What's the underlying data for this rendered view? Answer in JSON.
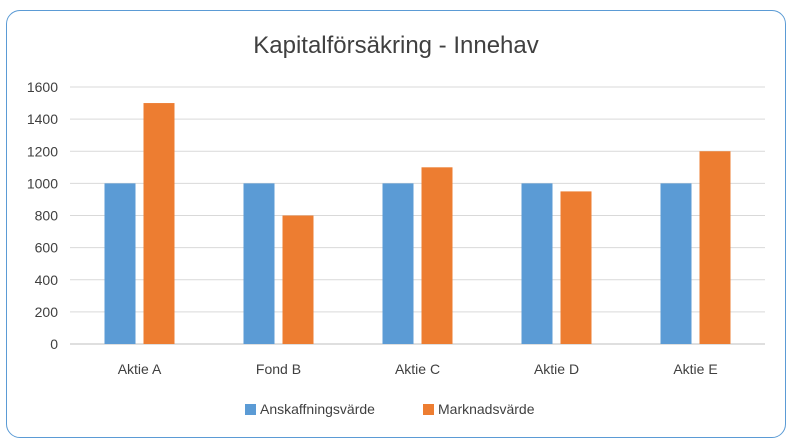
{
  "chart_data": {
    "type": "bar",
    "title": "Kapitalförsäkring - Innehav",
    "xlabel": "",
    "ylabel": "",
    "categories": [
      "Aktie A",
      "Fond B",
      "Aktie C",
      "Aktie D",
      "Aktie E"
    ],
    "series": [
      {
        "name": "Anskaffningsvärde",
        "values": [
          1000,
          1000,
          1000,
          1000,
          1000
        ],
        "color": "#5b9bd5"
      },
      {
        "name": "Marknadsvärde",
        "values": [
          1500,
          800,
          1100,
          950,
          1200
        ],
        "color": "#ed7d31"
      }
    ],
    "ylim": [
      0,
      1600
    ],
    "yticks": [
      0,
      200,
      400,
      600,
      800,
      1000,
      1200,
      1400,
      1600
    ],
    "grid": true,
    "legend_position": "bottom"
  }
}
